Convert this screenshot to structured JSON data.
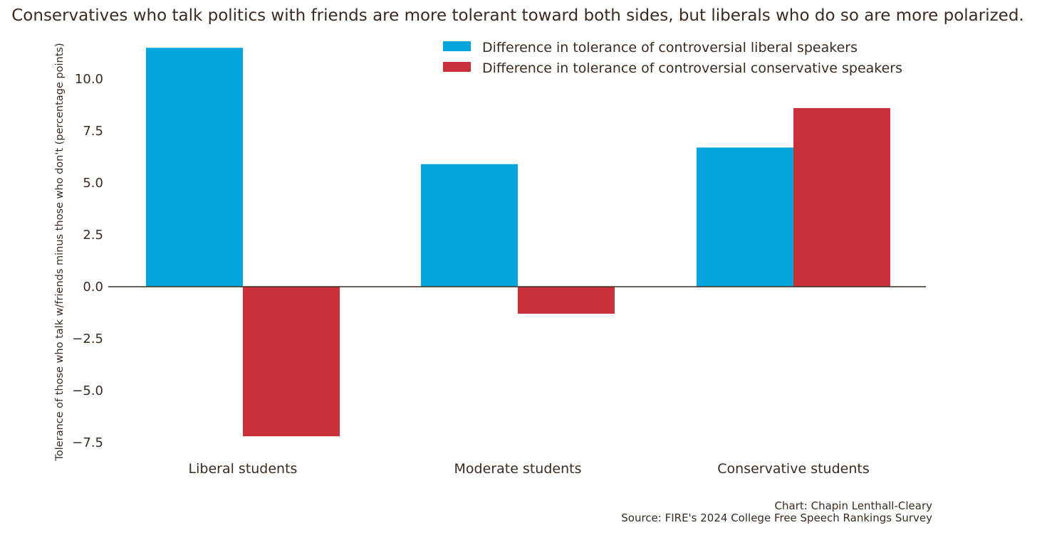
{
  "chart_data": {
    "type": "bar",
    "title": "Conservatives who talk politics with friends are more tolerant toward both sides, but liberals who do so are more polarized.",
    "xlabel": "",
    "ylabel": "Tolerance of those who talk w/friends minus those who don't (percentage points)",
    "categories": [
      "Liberal students",
      "Moderate students",
      "Conservative students"
    ],
    "series": [
      {
        "name": "Difference in tolerance of controversial liberal speakers",
        "color": "#06a5dd",
        "values": [
          11.5,
          5.9,
          6.7
        ]
      },
      {
        "name": "Difference in tolerance of controversial conservative speakers",
        "color": "#c9303a",
        "values": [
          -7.2,
          -1.3,
          8.6
        ]
      }
    ],
    "ylim": [
      -8.2,
      12.0
    ],
    "yticks": [
      10.0,
      7.5,
      5.0,
      2.5,
      0.0,
      -2.5,
      -5.0,
      -7.5
    ],
    "ytick_labels": [
      "10.0",
      "7.5",
      "5.0",
      "2.5",
      "0.0",
      "−2.5",
      "−5.0",
      "−7.5"
    ],
    "grid": false,
    "legend_position": "top-right"
  },
  "credit": {
    "chart_by": "Chart: Chapin Lenthall-Cleary",
    "source": "Source: FIRE's 2024 College Free Speech Rankings Survey"
  }
}
